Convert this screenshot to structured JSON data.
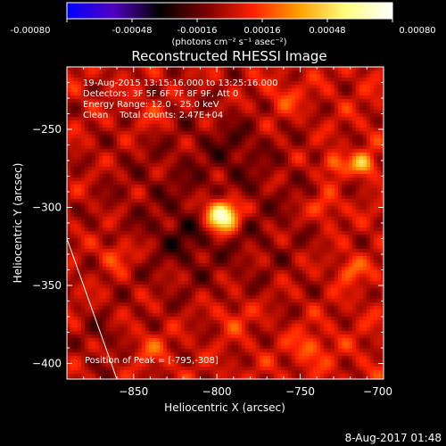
{
  "chart_data": {
    "type": "heatmap",
    "colorbar": {
      "min": -0.0008,
      "max": 0.0008,
      "tick_values": [
        -0.0008,
        -0.00048,
        -0.00016,
        0.00016,
        0.00048,
        0.0008
      ],
      "tick_labels": [
        "-0.00080",
        "-0.00048",
        "-0.00016",
        "0.00016",
        "0.00048",
        "0.00080"
      ],
      "unit_label": "(photons cm⁻² s⁻¹ asec⁻²)",
      "colormap": [
        "#0000ff",
        "#5000c0",
        "#000000",
        "#7a0000",
        "#ff2000",
        "#ffa000",
        "#ffff80",
        "#ffffff"
      ]
    },
    "title": "Reconstructed RHESSI Image",
    "info_lines": [
      "19-Aug-2015 13:15:16.000 to 13:25:16.000",
      "Detectors: 3F 5F 6F 7F 8F 9F, Att 0",
      "Energy Range: 12.0 - 25.0 keV",
      "Clean    Total counts: 2.47E+04"
    ],
    "peak_label": "Position of Peak = [-795,-308]",
    "xlabel": "Heliocentric X (arcsec)",
    "ylabel": "Heliocentric Y (arcsec)",
    "xlim": [
      -890,
      -700
    ],
    "ylim": [
      -410,
      -210
    ],
    "x_ticks": [
      -850,
      -800,
      -750,
      -700
    ],
    "x_tick_labels": [
      "−850",
      "−800",
      "−750",
      "−700"
    ],
    "y_ticks": [
      -400,
      -350,
      -300,
      -250
    ],
    "y_tick_labels": [
      "−400",
      "−350",
      "−300",
      "−250"
    ],
    "peak": {
      "x": -795,
      "y": -308
    },
    "limb_line": [
      [
        -890,
        -320
      ],
      [
        -860,
        -410
      ]
    ],
    "bright_sources": [
      {
        "x": -797,
        "y": -305,
        "value": 0.00085,
        "sigma": 7
      },
      {
        "x": -712,
        "y": -272,
        "value": 0.0004,
        "sigma": 5
      },
      {
        "x": -730,
        "y": -272,
        "value": 0.0003,
        "sigma": 5
      },
      {
        "x": -735,
        "y": -300,
        "value": 0.00022,
        "sigma": 6
      },
      {
        "x": -720,
        "y": -340,
        "value": 0.00022,
        "sigma": 6
      },
      {
        "x": -860,
        "y": -330,
        "value": 0.0002,
        "sigma": 7
      },
      {
        "x": -745,
        "y": -390,
        "value": 0.0002,
        "sigma": 7
      },
      {
        "x": -840,
        "y": -390,
        "value": 0.00015,
        "sigma": 8
      },
      {
        "x": -790,
        "y": -370,
        "value": 0.00015,
        "sigma": 8
      },
      {
        "x": -840,
        "y": -240,
        "value": 0.00012,
        "sigma": 8
      },
      {
        "x": -760,
        "y": -230,
        "value": 0.00015,
        "sigma": 8
      },
      {
        "x": -820,
        "y": -320,
        "value": -0.00012,
        "sigma": 10
      },
      {
        "x": -790,
        "y": -260,
        "value": -0.0001,
        "sigma": 10
      },
      {
        "x": -870,
        "y": -380,
        "value": -0.00012,
        "sigma": 6
      }
    ]
  },
  "footer_date": "8-Aug-2017 01:48"
}
